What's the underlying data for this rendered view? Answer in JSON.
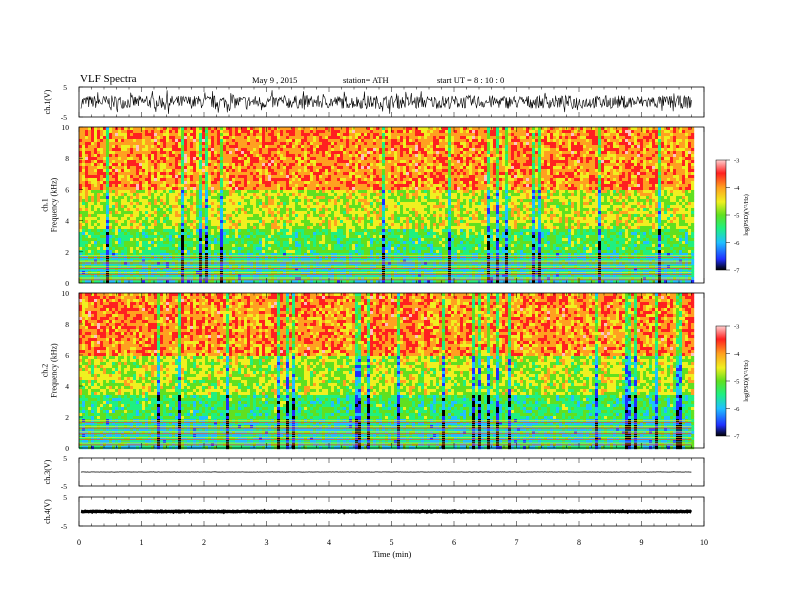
{
  "header": {
    "title": "VLF  Spectra",
    "date": "May 9  , 2015",
    "station": "station= ATH",
    "start": "start  UT  =   8 : 10 : 0"
  },
  "colors": {
    "waveform": "#000000",
    "spectrogram_ramp": [
      "#000000",
      "#2030ff",
      "#20c0ff",
      "#20f080",
      "#60e020",
      "#f0f020",
      "#ffa020",
      "#ff2020",
      "#ffc0c0"
    ],
    "background": "#ffffff"
  },
  "chart_data": [
    {
      "type": "line",
      "id": "ch1_wave",
      "ylabel": "ch.1(V)",
      "yticks": [
        "5",
        "-5"
      ],
      "ylim": [
        -5,
        5
      ],
      "x_unit": "min",
      "xlim": [
        0,
        10
      ],
      "data_end_x": 9.8,
      "description": "dense broadband noise, amplitude roughly -3..3 V"
    },
    {
      "type": "heatmap",
      "id": "ch1_spec",
      "ylabel": "ch.1\nFrequency  (kHz)",
      "yticks": [
        "0",
        "2",
        "4",
        "6",
        "8",
        "10"
      ],
      "ylim": [
        0,
        10
      ],
      "xlim": [
        0,
        10
      ],
      "data_end_x": 9.8,
      "colorbar": {
        "label": "log(PSD)(V²/Hz)",
        "ticks": [
          "-3",
          "-4",
          "-5",
          "-6",
          "-7"
        ],
        "range": [
          -7,
          -3
        ]
      },
      "bands_khz": [
        {
          "from": 0,
          "to": 2,
          "level": -5.6
        },
        {
          "from": 2,
          "to": 3.5,
          "level": -5.2
        },
        {
          "from": 3.5,
          "to": 6,
          "level": -4.6
        },
        {
          "from": 6,
          "to": 10,
          "level": -3.9
        }
      ]
    },
    {
      "type": "heatmap",
      "id": "ch2_spec",
      "ylabel": "ch.2\nFrequency  (kHz)",
      "yticks": [
        "0",
        "2",
        "4",
        "6",
        "8",
        "10"
      ],
      "ylim": [
        0,
        10
      ],
      "xlim": [
        0,
        10
      ],
      "data_end_x": 9.8,
      "colorbar": {
        "label": "log(PSD)(V²/Hz)",
        "ticks": [
          "-3",
          "-4",
          "-5",
          "-6",
          "-7"
        ],
        "range": [
          -7,
          -3
        ]
      },
      "bands_khz": [
        {
          "from": 0,
          "to": 2,
          "level": -5.6
        },
        {
          "from": 2,
          "to": 3.5,
          "level": -5.3
        },
        {
          "from": 3.5,
          "to": 6,
          "level": -4.7
        },
        {
          "from": 6,
          "to": 10,
          "level": -3.9
        }
      ]
    },
    {
      "type": "line",
      "id": "ch3_wave",
      "ylabel": "ch.3(V)",
      "yticks": [
        "5",
        "-5"
      ],
      "ylim": [
        -5,
        5
      ],
      "xlim": [
        0,
        10
      ],
      "data_end_x": 9.8,
      "description": "flat trace near 0 V"
    },
    {
      "type": "line",
      "id": "ch4_wave",
      "ylabel": "ch.4(V)",
      "yticks": [
        "5",
        "-5"
      ],
      "ylim": [
        -5,
        5
      ],
      "xlim": [
        0,
        10
      ],
      "data_end_x": 9.8,
      "description": "thick flat trace near 0 V"
    }
  ],
  "x_axis": {
    "label": "Time  (min)",
    "ticks": [
      "0",
      "1",
      "2",
      "3",
      "4",
      "5",
      "6",
      "7",
      "8",
      "9",
      "10"
    ],
    "range": [
      0,
      10
    ]
  }
}
